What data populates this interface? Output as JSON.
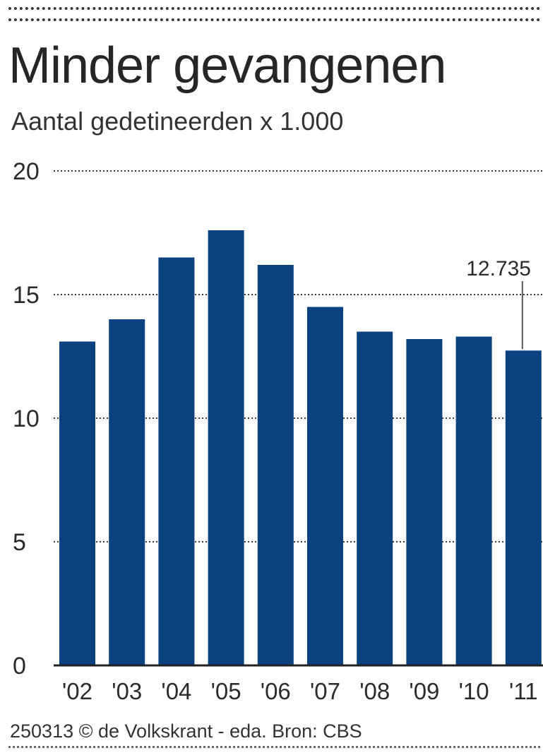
{
  "source": "250313 © de Volkskrant - eda. Bron: CBS",
  "colors": {
    "bar": "#0a4280",
    "text": "#2b2b2b",
    "grid": "#3a3a3a"
  },
  "chart_data": {
    "type": "bar",
    "title": "Minder gevangenen",
    "subtitle": "Aantal gedetineerden x 1.000",
    "categories": [
      "'02",
      "'03",
      "'04",
      "'05",
      "'06",
      "'07",
      "'08",
      "'09",
      "'10",
      "'11"
    ],
    "values": [
      13.1,
      14.0,
      16.5,
      17.6,
      16.2,
      14.5,
      13.5,
      13.2,
      13.3,
      12.735
    ],
    "ylim": [
      0,
      20
    ],
    "yticks": [
      0,
      5,
      10,
      15,
      20
    ],
    "ytick_labels": [
      "0",
      "5",
      "10",
      "15",
      "20"
    ],
    "grid": true,
    "grid_style": "dotted",
    "xlabel": "",
    "ylabel": "",
    "annotation": {
      "category": "'11",
      "text": "12.735"
    }
  }
}
